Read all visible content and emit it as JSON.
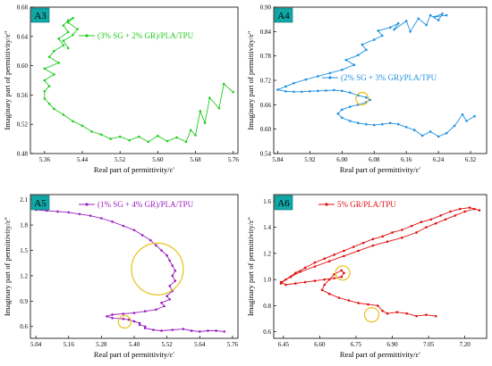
{
  "figure": {
    "panels_data": [
      {
        "id": "A3",
        "tag": "A3",
        "legend": "(3% SG + 2% GR)/PLA/TPU",
        "color": "#22cc22",
        "xlabel": "Real part of permittivity/ε′",
        "ylabel": "Imaginary part of permittivity/ε″"
      },
      {
        "id": "A4",
        "tag": "A4",
        "legend": "(2% SG + 3% GR)/PLA/TPU",
        "color": "#1e90e0",
        "xlabel": "Real part of permittivity/ε′",
        "ylabel": "Imaginary part of permittivity/ε″"
      },
      {
        "id": "A5",
        "tag": "A5",
        "legend": "(1% SG + 4% GR)/PLA/TPU",
        "color": "#9b1fbf",
        "xlabel": "Real part of permittivity/ε′",
        "ylabel": "Imaginary part of permittivity/ε″"
      },
      {
        "id": "A6",
        "tag": "A6",
        "legend": "5% GR/PLA/TPU",
        "color": "#e01010",
        "xlabel": "Real part of permittivity/ε′",
        "ylabel": "Imaginary part of permittivity/ε″"
      }
    ],
    "circle_color": "#e6c21a"
  },
  "chart_data": [
    {
      "type": "line",
      "panel": "A3",
      "xlim": [
        5.33,
        5.77
      ],
      "ylim": [
        0.48,
        0.68
      ],
      "xticks": [
        "5.36",
        "5.44",
        "5.52",
        "5.60",
        "5.68",
        "5.76"
      ],
      "yticks": [
        "0.48",
        "0.52",
        "0.56",
        "0.60",
        "0.64",
        "0.68"
      ],
      "series": [
        {
          "name": "(3% SG + 2% GR)/PLA/TPU",
          "points": [
            [
              5.76,
              0.564
            ],
            [
              5.74,
              0.575
            ],
            [
              5.73,
              0.542
            ],
            [
              5.71,
              0.556
            ],
            [
              5.7,
              0.522
            ],
            [
              5.69,
              0.538
            ],
            [
              5.68,
              0.505
            ],
            [
              5.67,
              0.512
            ],
            [
              5.66,
              0.496
            ],
            [
              5.64,
              0.502
            ],
            [
              5.62,
              0.497
            ],
            [
              5.6,
              0.504
            ],
            [
              5.58,
              0.496
            ],
            [
              5.56,
              0.503
            ],
            [
              5.54,
              0.498
            ],
            [
              5.52,
              0.503
            ],
            [
              5.5,
              0.5
            ],
            [
              5.48,
              0.506
            ],
            [
              5.46,
              0.51
            ],
            [
              5.44,
              0.518
            ],
            [
              5.42,
              0.524
            ],
            [
              5.4,
              0.533
            ],
            [
              5.38,
              0.541
            ],
            [
              5.37,
              0.548
            ],
            [
              5.36,
              0.555
            ],
            [
              5.36,
              0.565
            ],
            [
              5.37,
              0.572
            ],
            [
              5.36,
              0.58
            ],
            [
              5.38,
              0.588
            ],
            [
              5.36,
              0.596
            ],
            [
              5.39,
              0.604
            ],
            [
              5.37,
              0.612
            ],
            [
              5.38,
              0.62
            ],
            [
              5.4,
              0.628
            ],
            [
              5.39,
              0.637
            ],
            [
              5.41,
              0.646
            ],
            [
              5.4,
              0.655
            ],
            [
              5.41,
              0.662
            ],
            [
              5.42,
              0.665
            ],
            [
              5.41,
              0.659
            ],
            [
              5.43,
              0.65
            ],
            [
              5.42,
              0.642
            ],
            [
              5.4,
              0.634
            ],
            [
              5.41,
              0.624
            ]
          ]
        }
      ]
    },
    {
      "type": "line",
      "panel": "A4",
      "xlim": [
        5.83,
        6.36
      ],
      "ylim": [
        0.54,
        0.9
      ],
      "xticks": [
        "5.84",
        "5.92",
        "6.00",
        "6.08",
        "6.16",
        "6.24",
        "6.32"
      ],
      "yticks": [
        "0.54",
        "0.60",
        "0.66",
        "0.72",
        "0.78",
        "0.84",
        "0.90"
      ],
      "series": [
        {
          "name": "(2% SG + 3% GR)/PLA/TPU",
          "points": [
            [
              6.33,
              0.632
            ],
            [
              6.31,
              0.62
            ],
            [
              6.3,
              0.636
            ],
            [
              6.28,
              0.608
            ],
            [
              6.26,
              0.59
            ],
            [
              6.24,
              0.582
            ],
            [
              6.22,
              0.594
            ],
            [
              6.2,
              0.584
            ],
            [
              6.18,
              0.598
            ],
            [
              6.16,
              0.605
            ],
            [
              6.14,
              0.612
            ],
            [
              6.12,
              0.615
            ],
            [
              6.1,
              0.612
            ],
            [
              6.08,
              0.61
            ],
            [
              6.06,
              0.612
            ],
            [
              6.04,
              0.615
            ],
            [
              6.02,
              0.62
            ],
            [
              6.0,
              0.628
            ],
            [
              5.99,
              0.638
            ],
            [
              6.0,
              0.648
            ],
            [
              6.02,
              0.655
            ],
            [
              6.04,
              0.66
            ],
            [
              6.06,
              0.666
            ],
            [
              6.07,
              0.672
            ],
            [
              6.06,
              0.678
            ],
            [
              6.04,
              0.683
            ],
            [
              6.02,
              0.69
            ],
            [
              6.0,
              0.694
            ],
            [
              5.98,
              0.696
            ],
            [
              5.96,
              0.695
            ],
            [
              5.94,
              0.694
            ],
            [
              5.92,
              0.693
            ],
            [
              5.9,
              0.692
            ],
            [
              5.88,
              0.692
            ],
            [
              5.86,
              0.693
            ],
            [
              5.84,
              0.697
            ],
            [
              5.86,
              0.705
            ],
            [
              5.88,
              0.713
            ],
            [
              5.91,
              0.722
            ],
            [
              5.94,
              0.73
            ],
            [
              5.97,
              0.738
            ],
            [
              6.0,
              0.746
            ],
            [
              6.03,
              0.758
            ],
            [
              6.01,
              0.77
            ],
            [
              6.04,
              0.782
            ],
            [
              6.06,
              0.795
            ],
            [
              6.05,
              0.808
            ],
            [
              6.08,
              0.82
            ],
            [
              6.1,
              0.83
            ],
            [
              6.09,
              0.842
            ],
            [
              6.12,
              0.85
            ],
            [
              6.14,
              0.86
            ],
            [
              6.13,
              0.845
            ],
            [
              6.16,
              0.866
            ],
            [
              6.17,
              0.84
            ],
            [
              6.19,
              0.872
            ],
            [
              6.21,
              0.856
            ],
            [
              6.22,
              0.88
            ],
            [
              6.24,
              0.868
            ],
            [
              6.25,
              0.884
            ],
            [
              6.23,
              0.876
            ],
            [
              6.26,
              0.88
            ]
          ]
        }
      ]
    },
    {
      "type": "line",
      "panel": "A5",
      "xlim": [
        5.02,
        5.78
      ],
      "ylim": [
        0.46,
        2.16
      ],
      "xticks": [
        "5.04",
        "5.16",
        "5.28",
        "5.40",
        "5.52",
        "5.64",
        "5.76"
      ],
      "yticks": [
        "0.6",
        "0.9",
        "1.2",
        "1.5",
        "1.8",
        "2.1"
      ],
      "series": [
        {
          "name": "(1% SG + 4% GR)/PLA/TPU",
          "points": [
            [
              5.04,
              1.98
            ],
            [
              5.08,
              1.97
            ],
            [
              5.12,
              1.96
            ],
            [
              5.16,
              1.95
            ],
            [
              5.2,
              1.93
            ],
            [
              5.24,
              1.91
            ],
            [
              5.28,
              1.88
            ],
            [
              5.32,
              1.84
            ],
            [
              5.36,
              1.79
            ],
            [
              5.4,
              1.74
            ],
            [
              5.43,
              1.68
            ],
            [
              5.46,
              1.62
            ],
            [
              5.48,
              1.56
            ],
            [
              5.5,
              1.5
            ],
            [
              5.52,
              1.44
            ],
            [
              5.53,
              1.38
            ],
            [
              5.54,
              1.32
            ],
            [
              5.55,
              1.26
            ],
            [
              5.54,
              1.2
            ],
            [
              5.55,
              1.14
            ],
            [
              5.53,
              1.08
            ],
            [
              5.54,
              1.02
            ],
            [
              5.52,
              0.96
            ],
            [
              5.53,
              0.92
            ],
            [
              5.5,
              0.88
            ],
            [
              5.51,
              0.84
            ],
            [
              5.48,
              0.8
            ],
            [
              5.44,
              0.78
            ],
            [
              5.4,
              0.76
            ],
            [
              5.36,
              0.75
            ],
            [
              5.32,
              0.74
            ],
            [
              5.3,
              0.72
            ],
            [
              5.32,
              0.7
            ],
            [
              5.36,
              0.69
            ],
            [
              5.38,
              0.68
            ],
            [
              5.4,
              0.66
            ],
            [
              5.42,
              0.64
            ],
            [
              5.42,
              0.62
            ],
            [
              5.44,
              0.6
            ],
            [
              5.44,
              0.58
            ],
            [
              5.47,
              0.56
            ],
            [
              5.5,
              0.55
            ],
            [
              5.54,
              0.56
            ],
            [
              5.58,
              0.57
            ],
            [
              5.61,
              0.55
            ],
            [
              5.64,
              0.54
            ],
            [
              5.67,
              0.55
            ],
            [
              5.7,
              0.55
            ],
            [
              5.73,
              0.54
            ]
          ]
        }
      ]
    },
    {
      "type": "line",
      "panel": "A6",
      "xlim": [
        6.41,
        7.29
      ],
      "ylim": [
        0.55,
        1.65
      ],
      "xticks": [
        "6.45",
        "6.60",
        "6.75",
        "6.90",
        "7.05",
        "7.20"
      ],
      "yticks": [
        "0.6",
        "0.8",
        "1.0",
        "1.2",
        "1.4",
        "1.6"
      ],
      "series": [
        {
          "name": "5% GR/PLA/TPU",
          "points": [
            [
              7.08,
              0.72
            ],
            [
              7.04,
              0.73
            ],
            [
              7.0,
              0.72
            ],
            [
              6.96,
              0.74
            ],
            [
              6.92,
              0.75
            ],
            [
              6.88,
              0.74
            ],
            [
              6.86,
              0.76
            ],
            [
              6.84,
              0.8
            ],
            [
              6.8,
              0.81
            ],
            [
              6.76,
              0.82
            ],
            [
              6.72,
              0.84
            ],
            [
              6.68,
              0.86
            ],
            [
              6.64,
              0.89
            ],
            [
              6.61,
              0.92
            ],
            [
              6.62,
              0.96
            ],
            [
              6.64,
              1.0
            ],
            [
              6.66,
              1.04
            ],
            [
              6.69,
              1.07
            ],
            [
              6.7,
              1.05
            ],
            [
              6.69,
              1.02
            ],
            [
              6.66,
              1.01
            ],
            [
              6.62,
              1.0
            ],
            [
              6.58,
              0.99
            ],
            [
              6.54,
              0.98
            ],
            [
              6.5,
              0.97
            ],
            [
              6.46,
              0.96
            ],
            [
              6.44,
              0.98
            ],
            [
              6.48,
              1.02
            ],
            [
              6.52,
              1.06
            ],
            [
              6.58,
              1.1
            ],
            [
              6.64,
              1.14
            ],
            [
              6.7,
              1.18
            ],
            [
              6.76,
              1.22
            ],
            [
              6.82,
              1.26
            ],
            [
              6.88,
              1.29
            ],
            [
              6.94,
              1.32
            ],
            [
              7.0,
              1.36
            ],
            [
              7.04,
              1.4
            ],
            [
              7.08,
              1.43
            ],
            [
              7.12,
              1.46
            ],
            [
              7.16,
              1.49
            ],
            [
              7.2,
              1.52
            ],
            [
              7.24,
              1.54
            ],
            [
              7.26,
              1.53
            ],
            [
              7.22,
              1.55
            ],
            [
              7.18,
              1.54
            ],
            [
              7.14,
              1.52
            ],
            [
              7.1,
              1.49
            ],
            [
              7.06,
              1.46
            ],
            [
              7.02,
              1.44
            ],
            [
              6.98,
              1.41
            ],
            [
              6.94,
              1.38
            ],
            [
              6.9,
              1.36
            ],
            [
              6.86,
              1.33
            ],
            [
              6.82,
              1.31
            ],
            [
              6.78,
              1.28
            ],
            [
              6.74,
              1.25
            ],
            [
              6.7,
              1.22
            ],
            [
              6.66,
              1.19
            ],
            [
              6.62,
              1.16
            ],
            [
              6.58,
              1.13
            ],
            [
              6.54,
              1.09
            ],
            [
              6.5,
              1.05
            ],
            [
              6.46,
              1.0
            ],
            [
              6.44,
              0.97
            ]
          ]
        }
      ]
    }
  ]
}
